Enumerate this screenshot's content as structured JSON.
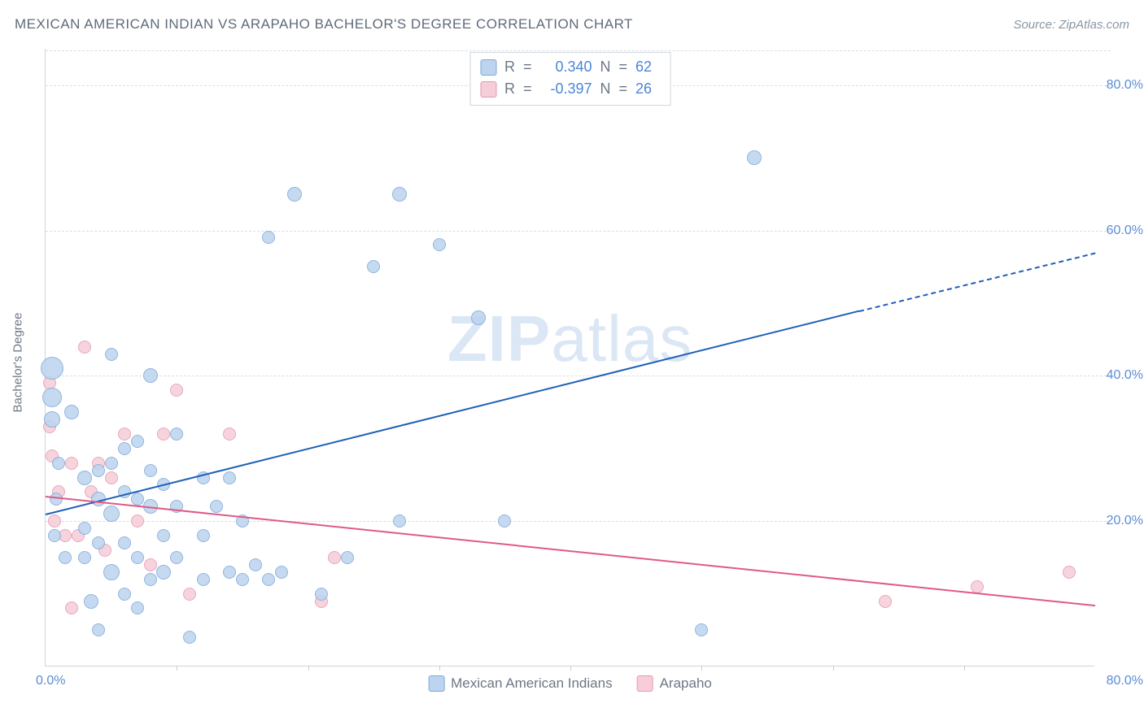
{
  "title": "MEXICAN AMERICAN INDIAN VS ARAPAHO BACHELOR'S DEGREE CORRELATION CHART",
  "source": "Source: ZipAtlas.com",
  "watermark": {
    "bold": "ZIP",
    "rest": "atlas"
  },
  "axes": {
    "y_title": "Bachelor's Degree",
    "x_min": 0,
    "x_max": 80,
    "y_min": 0,
    "y_max": 85,
    "y_ticks": [
      20,
      40,
      60,
      80
    ],
    "y_tick_labels": [
      "20.0%",
      "40.0%",
      "60.0%",
      "80.0%"
    ],
    "x_label_min": "0.0%",
    "x_label_max": "80.0%",
    "x_minor_ticks": [
      10,
      20,
      30,
      40,
      50,
      60,
      70
    ]
  },
  "colors": {
    "series1_fill": "#bcd4ef",
    "series1_stroke": "#7fa9d8",
    "series2_fill": "#f6cdd8",
    "series2_stroke": "#e39ab0",
    "trend1": "#1f5fb8",
    "trend2": "#e05a85",
    "grid": "#d8dde2",
    "text_axis": "#5a8dd6"
  },
  "legend_top": {
    "rows": [
      {
        "swatch": 1,
        "R_label": "R",
        "R_val": "0.340",
        "N_label": "N",
        "N_val": "62"
      },
      {
        "swatch": 2,
        "R_label": "R",
        "R_val": "-0.397",
        "N_label": "N",
        "N_val": "26"
      }
    ]
  },
  "legend_bottom": {
    "items": [
      {
        "swatch": 1,
        "label": "Mexican American Indians"
      },
      {
        "swatch": 2,
        "label": "Arapaho"
      }
    ]
  },
  "trend_lines": {
    "series1": {
      "x1": 0,
      "y1": 21,
      "x2_solid": 62,
      "y2_solid": 49,
      "x2": 80,
      "y2": 57
    },
    "series2": {
      "x1": 0,
      "y1": 23.5,
      "x2": 80,
      "y2": 8.5
    }
  },
  "series1_points": [
    {
      "x": 0.5,
      "y": 41,
      "r": 14
    },
    {
      "x": 0.5,
      "y": 37,
      "r": 12
    },
    {
      "x": 0.5,
      "y": 34,
      "r": 10
    },
    {
      "x": 1,
      "y": 28,
      "r": 8
    },
    {
      "x": 0.8,
      "y": 23,
      "r": 8
    },
    {
      "x": 0.7,
      "y": 18,
      "r": 8
    },
    {
      "x": 1.5,
      "y": 15,
      "r": 8
    },
    {
      "x": 2,
      "y": 35,
      "r": 9
    },
    {
      "x": 3,
      "y": 26,
      "r": 9
    },
    {
      "x": 3,
      "y": 19,
      "r": 8
    },
    {
      "x": 3,
      "y": 15,
      "r": 8
    },
    {
      "x": 3.5,
      "y": 9,
      "r": 9
    },
    {
      "x": 4,
      "y": 27,
      "r": 8
    },
    {
      "x": 4,
      "y": 23,
      "r": 9
    },
    {
      "x": 4,
      "y": 17,
      "r": 8
    },
    {
      "x": 5,
      "y": 43,
      "r": 8
    },
    {
      "x": 5,
      "y": 28,
      "r": 8
    },
    {
      "x": 5,
      "y": 21,
      "r": 10
    },
    {
      "x": 5,
      "y": 13,
      "r": 10
    },
    {
      "x": 6,
      "y": 30,
      "r": 8
    },
    {
      "x": 6,
      "y": 24,
      "r": 8
    },
    {
      "x": 6,
      "y": 17,
      "r": 8
    },
    {
      "x": 6,
      "y": 10,
      "r": 8
    },
    {
      "x": 7,
      "y": 23,
      "r": 8
    },
    {
      "x": 7,
      "y": 31,
      "r": 8
    },
    {
      "x": 7,
      "y": 15,
      "r": 8
    },
    {
      "x": 8,
      "y": 40,
      "r": 9
    },
    {
      "x": 8,
      "y": 27,
      "r": 8
    },
    {
      "x": 8,
      "y": 22,
      "r": 9
    },
    {
      "x": 8,
      "y": 12,
      "r": 8
    },
    {
      "x": 9,
      "y": 25,
      "r": 8
    },
    {
      "x": 9,
      "y": 18,
      "r": 8
    },
    {
      "x": 9,
      "y": 13,
      "r": 9
    },
    {
      "x": 10,
      "y": 32,
      "r": 8
    },
    {
      "x": 10,
      "y": 22,
      "r": 8
    },
    {
      "x": 10,
      "y": 15,
      "r": 8
    },
    {
      "x": 11,
      "y": 4,
      "r": 8
    },
    {
      "x": 12,
      "y": 26,
      "r": 8
    },
    {
      "x": 12,
      "y": 18,
      "r": 8
    },
    {
      "x": 12,
      "y": 12,
      "r": 8
    },
    {
      "x": 13,
      "y": 22,
      "r": 8
    },
    {
      "x": 14,
      "y": 26,
      "r": 8
    },
    {
      "x": 14,
      "y": 13,
      "r": 8
    },
    {
      "x": 15,
      "y": 20,
      "r": 8
    },
    {
      "x": 15,
      "y": 12,
      "r": 8
    },
    {
      "x": 16,
      "y": 14,
      "r": 8
    },
    {
      "x": 17,
      "y": 12,
      "r": 8
    },
    {
      "x": 17,
      "y": 59,
      "r": 8
    },
    {
      "x": 18,
      "y": 13,
      "r": 8
    },
    {
      "x": 19,
      "y": 65,
      "r": 9
    },
    {
      "x": 21,
      "y": 10,
      "r": 8
    },
    {
      "x": 23,
      "y": 15,
      "r": 8
    },
    {
      "x": 25,
      "y": 55,
      "r": 8
    },
    {
      "x": 27,
      "y": 20,
      "r": 8
    },
    {
      "x": 27,
      "y": 65,
      "r": 9
    },
    {
      "x": 30,
      "y": 58,
      "r": 8
    },
    {
      "x": 33,
      "y": 48,
      "r": 9
    },
    {
      "x": 35,
      "y": 20,
      "r": 8
    },
    {
      "x": 50,
      "y": 5,
      "r": 8
    },
    {
      "x": 54,
      "y": 70,
      "r": 9
    },
    {
      "x": 4,
      "y": 5,
      "r": 8
    },
    {
      "x": 7,
      "y": 8,
      "r": 8
    }
  ],
  "series2_points": [
    {
      "x": 0.3,
      "y": 39,
      "r": 8
    },
    {
      "x": 0.3,
      "y": 33,
      "r": 8
    },
    {
      "x": 0.5,
      "y": 29,
      "r": 8
    },
    {
      "x": 0.7,
      "y": 20,
      "r": 8
    },
    {
      "x": 1,
      "y": 24,
      "r": 8
    },
    {
      "x": 1.5,
      "y": 18,
      "r": 8
    },
    {
      "x": 2,
      "y": 28,
      "r": 8
    },
    {
      "x": 2,
      "y": 8,
      "r": 8
    },
    {
      "x": 2.5,
      "y": 18,
      "r": 8
    },
    {
      "x": 3,
      "y": 44,
      "r": 8
    },
    {
      "x": 3.5,
      "y": 24,
      "r": 8
    },
    {
      "x": 4,
      "y": 28,
      "r": 8
    },
    {
      "x": 4.5,
      "y": 16,
      "r": 8
    },
    {
      "x": 5,
      "y": 26,
      "r": 8
    },
    {
      "x": 6,
      "y": 32,
      "r": 8
    },
    {
      "x": 7,
      "y": 20,
      "r": 8
    },
    {
      "x": 8,
      "y": 14,
      "r": 8
    },
    {
      "x": 9,
      "y": 32,
      "r": 8
    },
    {
      "x": 10,
      "y": 38,
      "r": 8
    },
    {
      "x": 11,
      "y": 10,
      "r": 8
    },
    {
      "x": 14,
      "y": 32,
      "r": 8
    },
    {
      "x": 21,
      "y": 9,
      "r": 8
    },
    {
      "x": 22,
      "y": 15,
      "r": 8
    },
    {
      "x": 64,
      "y": 9,
      "r": 8
    },
    {
      "x": 71,
      "y": 11,
      "r": 8
    },
    {
      "x": 78,
      "y": 13,
      "r": 8
    }
  ]
}
